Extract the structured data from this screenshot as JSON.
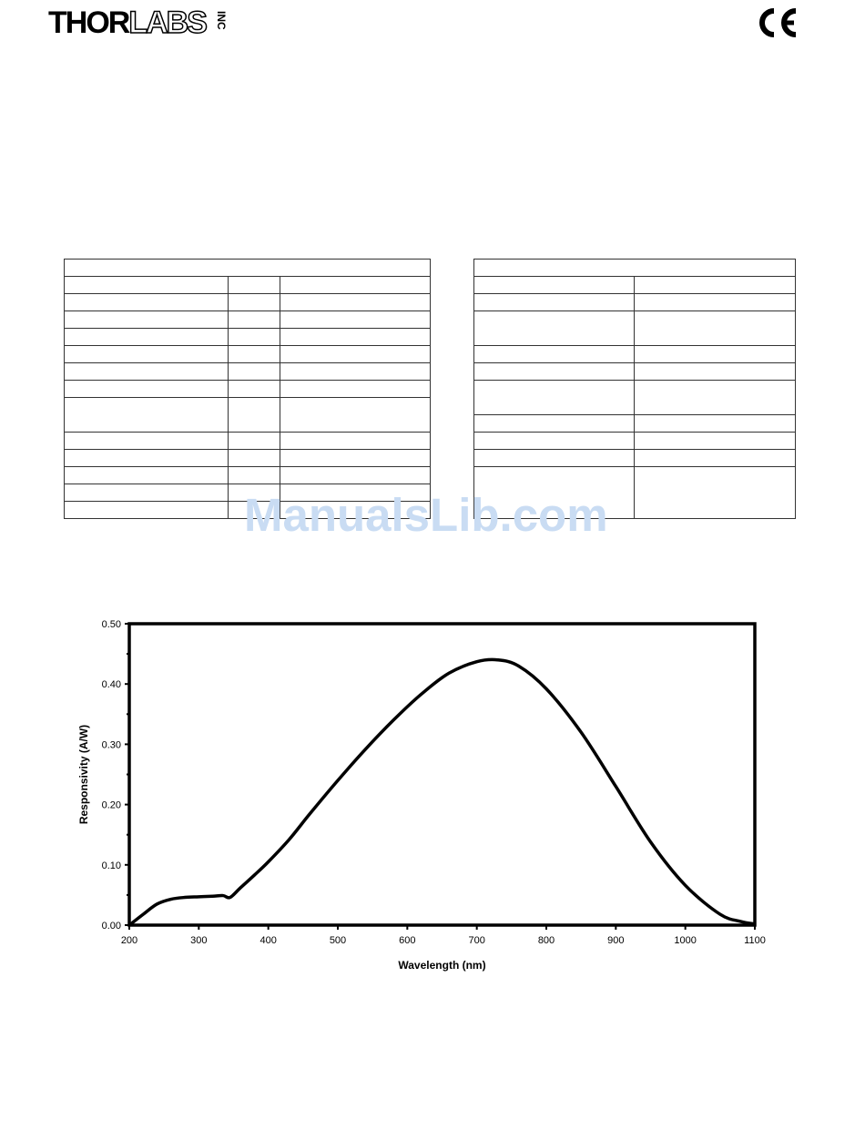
{
  "header": {
    "logo_main": "THOR",
    "logo_outline": "LABS",
    "logo_suffix": "INC",
    "ce_mark": "CE"
  },
  "watermark": "ManualsLib.com",
  "chart_data": {
    "type": "line",
    "title": "",
    "xlabel": "Wavelength (nm)",
    "ylabel": "Responsivity (A/W)",
    "xlim": [
      200,
      1100
    ],
    "ylim": [
      0,
      0.5
    ],
    "x_ticks": [
      200,
      300,
      400,
      500,
      600,
      700,
      800,
      900,
      1000,
      1100
    ],
    "x_tick_labels": [
      "200",
      "300",
      "400",
      "500",
      "600",
      "700",
      "800",
      "900",
      "1000",
      "1100"
    ],
    "y_ticks": [
      0,
      0.1,
      0.2,
      0.3,
      0.4,
      0.5
    ],
    "y_tick_labels": [
      "0.00",
      "0.10",
      "0.20",
      "0.30",
      "0.40",
      "0.50"
    ],
    "grid": false,
    "series": [
      {
        "x": [
          200,
          220,
          240,
          260,
          280,
          300,
          320,
          335,
          345,
          360,
          380,
          400,
          430,
          460,
          500,
          540,
          580,
          620,
          660,
          700,
          730,
          760,
          800,
          850,
          900,
          950,
          1000,
          1050,
          1080,
          1100
        ],
        "y": [
          0.0,
          0.018,
          0.035,
          0.043,
          0.046,
          0.047,
          0.048,
          0.049,
          0.046,
          0.062,
          0.083,
          0.105,
          0.142,
          0.185,
          0.24,
          0.292,
          0.34,
          0.383,
          0.418,
          0.437,
          0.44,
          0.43,
          0.392,
          0.32,
          0.23,
          0.138,
          0.066,
          0.018,
          0.006,
          0.002
        ]
      }
    ]
  }
}
